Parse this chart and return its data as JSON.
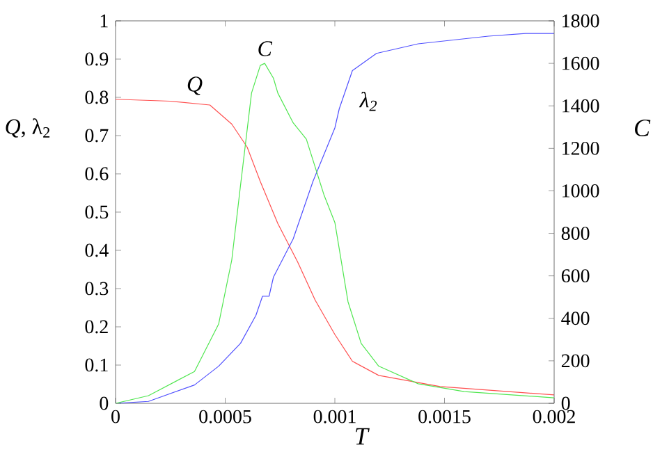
{
  "chart_data": {
    "type": "line",
    "xlabel": "T",
    "ylabel": "*Q*, λ$_{2}$",
    "y2label": "C",
    "xlim": [
      0,
      0.002
    ],
    "xticks": [
      0,
      0.0005,
      0.001,
      0.0015,
      0.002
    ],
    "ylim": [
      0,
      1
    ],
    "yticks": [
      0,
      0.1,
      0.2,
      0.3,
      0.4,
      0.5,
      0.6,
      0.7,
      0.8,
      0.9,
      1
    ],
    "y2lim": [
      0,
      1800
    ],
    "y2ticks": [
      0,
      200,
      400,
      600,
      800,
      1000,
      1200,
      1400,
      1600,
      1800
    ],
    "grid": false,
    "line_style": "solid",
    "series": [
      {
        "name": "Q",
        "color": "#ff5050",
        "x": [
          0,
          0.00025,
          0.00043,
          0.00053,
          0.0006,
          0.00066,
          0.00074,
          0.00083,
          0.00091,
          0.001,
          0.00108,
          0.0012,
          0.00148,
          0.002
        ],
        "values": [
          0.795,
          0.79,
          0.78,
          0.73,
          0.67,
          0.58,
          0.47,
          0.37,
          0.27,
          0.18,
          0.11,
          0.073,
          0.044,
          0.022
        ]
      },
      {
        "name": "C",
        "color": "#50e650",
        "axis": "y2",
        "x": [
          0,
          0.00015,
          0.00036,
          0.00047,
          0.00053,
          0.00057,
          0.00062,
          0.00066,
          0.00068,
          0.00072,
          0.00074,
          0.00081,
          0.00087,
          0.00095,
          0.001,
          0.00106,
          0.00112,
          0.0012,
          0.00138,
          0.00159,
          0.002
        ],
        "values": [
          0,
          36,
          150,
          373,
          675,
          1027,
          1460,
          1590,
          1600,
          1530,
          1460,
          1320,
          1243,
          982,
          851,
          478,
          282,
          175,
          92,
          55,
          26
        ]
      },
      {
        "name": "λ$_{2}$",
        "color": "#5050ff",
        "x": [
          0,
          0.00015,
          0.00036,
          0.00047,
          0.00057,
          0.00064,
          0.00067,
          0.0007,
          0.00072,
          0.00081,
          0.0009,
          0.00095,
          0.001,
          0.00102,
          0.00108,
          0.00119,
          0.00138,
          0.0017,
          0.00187,
          0.002
        ],
        "values": [
          0,
          0.005,
          0.048,
          0.097,
          0.157,
          0.23,
          0.28,
          0.28,
          0.33,
          0.43,
          0.58,
          0.65,
          0.72,
          0.77,
          0.87,
          0.915,
          0.94,
          0.96,
          0.967,
          0.967
        ]
      }
    ]
  }
}
